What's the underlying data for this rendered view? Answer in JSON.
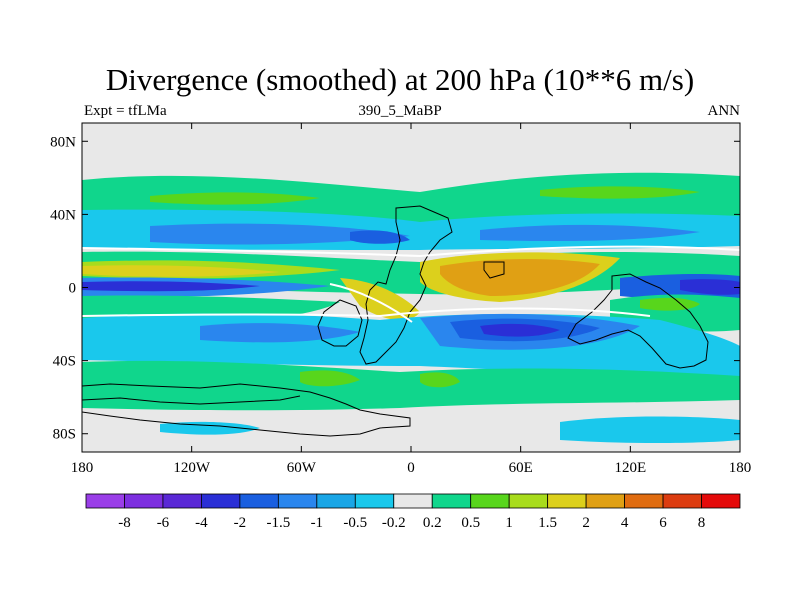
{
  "chart_data": {
    "type": "heatmap",
    "title": "Divergence (smoothed) at 200 hPa (10**6 m/s)",
    "subtitle_left": "Expt = tfLMa",
    "subtitle_center": "390_5_MaBP",
    "subtitle_right": "ANN",
    "x_ticks": [
      {
        "value": -180,
        "label": "180"
      },
      {
        "value": -120,
        "label": "120W"
      },
      {
        "value": -60,
        "label": "60W"
      },
      {
        "value": 0,
        "label": "0"
      },
      {
        "value": 60,
        "label": "60E"
      },
      {
        "value": 120,
        "label": "120E"
      },
      {
        "value": 180,
        "label": "180"
      }
    ],
    "y_ticks": [
      {
        "value": 80,
        "label": "80N"
      },
      {
        "value": 40,
        "label": "40N"
      },
      {
        "value": 0,
        "label": "0"
      },
      {
        "value": -40,
        "label": "40S"
      },
      {
        "value": -80,
        "label": "80S"
      }
    ],
    "xlim": [
      -180,
      180
    ],
    "ylim": [
      -90,
      90
    ],
    "colorbar": {
      "labels": [
        "-8",
        "-6",
        "-4",
        "-2",
        "-1.5",
        "-1",
        "-0.5",
        "-0.2",
        "0.2",
        "0.5",
        "1",
        "1.5",
        "2",
        "4",
        "6",
        "8"
      ],
      "colors": [
        "#9a3ee8",
        "#7d2fe0",
        "#5a28d6",
        "#2a2fd6",
        "#1a5fe0",
        "#2a86ee",
        "#1aa6e6",
        "#1ac8ec",
        "#e8e8e8",
        "#10d68c",
        "#58d61c",
        "#a8dc1c",
        "#dcd01c",
        "#e0a014",
        "#e06c10",
        "#dc3c10",
        "#e40a0a"
      ]
    },
    "fields": [
      {
        "name": "northern-positive-band",
        "class": "0.5 to 1",
        "lon": [
          -180,
          180
        ],
        "lat": [
          42,
          62
        ]
      },
      {
        "name": "northern-negative-band",
        "class": "-0.5 to -1",
        "lon": [
          -180,
          180
        ],
        "lat": [
          22,
          40
        ]
      },
      {
        "name": "northern-strong-convergence",
        "class": "-1 to -1.5",
        "lon": [
          -170,
          170
        ],
        "lat": [
          24,
          36
        ]
      },
      {
        "name": "tropical-positive-band",
        "class": "0.5 to 1.5",
        "lon": [
          -180,
          180
        ],
        "lat": [
          3,
          18
        ]
      },
      {
        "name": "asian-divergence-max",
        "class": "1.5 to 4",
        "lon": [
          10,
          110
        ],
        "lat": [
          -5,
          18
        ]
      },
      {
        "name": "equatorial-convergence",
        "class": "-1.5 to -2",
        "lon": [
          -180,
          180
        ],
        "lat": [
          -8,
          0
        ]
      },
      {
        "name": "southern-positive-band",
        "class": "0.5 to 1",
        "lon": [
          -180,
          180
        ],
        "lat": [
          -26,
          -10
        ]
      },
      {
        "name": "southern-convergence",
        "class": "-0.5 to -1.5",
        "lon": [
          -180,
          180
        ],
        "lat": [
          -46,
          -22
        ]
      },
      {
        "name": "antarctic-positive-band",
        "class": "0.5 to 1",
        "lon": [
          -180,
          180
        ],
        "lat": [
          -70,
          -50
        ]
      },
      {
        "name": "polar-negative-patches",
        "class": "-0.2 to -0.5",
        "lon": [
          -180,
          180
        ],
        "lat": [
          -88,
          -74
        ]
      }
    ]
  }
}
